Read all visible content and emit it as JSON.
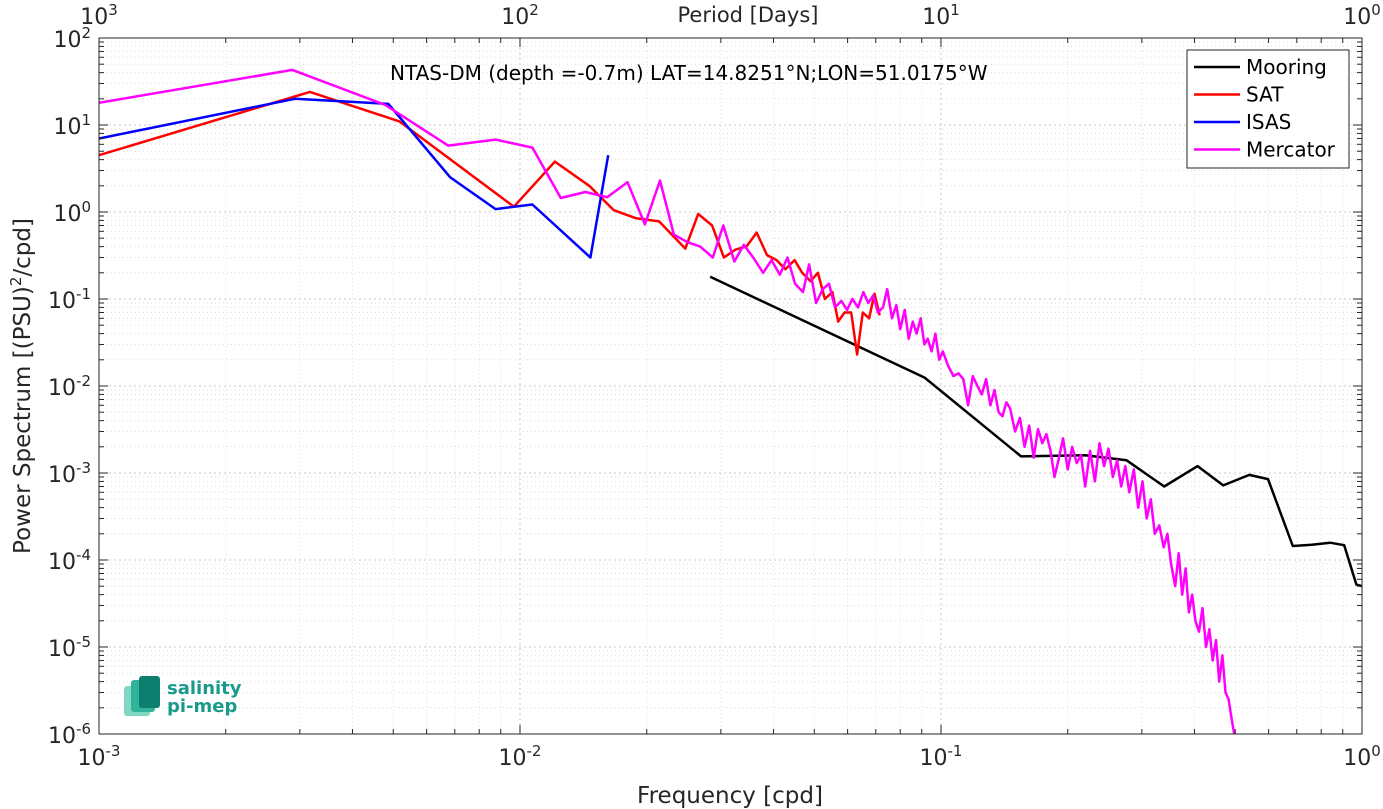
{
  "chart_data": {
    "type": "line",
    "title": "NTAS-DM (depth =-0.7m) LAT=14.8251°N;LON=51.0175°W",
    "xlabel": "Frequency [cpd]",
    "ylabel_main": "Power Spectrum [(PSU)",
    "ylabel_sup": "2",
    "ylabel_end": "/cpd]",
    "top_xlabel": "Period [Days]",
    "x_scale": "log",
    "y_scale": "log",
    "xlim": [
      0.001,
      1
    ],
    "ylim": [
      1e-06,
      100
    ],
    "grid": true,
    "legend_position": "top-right",
    "x_ticks": [
      {
        "value": 0.001,
        "base": "10",
        "exp": "-3"
      },
      {
        "value": 0.01,
        "base": "10",
        "exp": "-2"
      },
      {
        "value": 0.1,
        "base": "10",
        "exp": "-1"
      },
      {
        "value": 1,
        "base": "10",
        "exp": "0"
      }
    ],
    "top_ticks": [
      {
        "value": 0.001,
        "base": "10",
        "exp": "3"
      },
      {
        "value": 0.01,
        "base": "10",
        "exp": "2"
      },
      {
        "value": 0.1,
        "base": "10",
        "exp": "1"
      },
      {
        "value": 1,
        "base": "10",
        "exp": "0"
      }
    ],
    "y_ticks": [
      {
        "value": 1e-06,
        "base": "10",
        "exp": "-6"
      },
      {
        "value": 1e-05,
        "base": "10",
        "exp": "-5"
      },
      {
        "value": 0.0001,
        "base": "10",
        "exp": "-4"
      },
      {
        "value": 0.001,
        "base": "10",
        "exp": "-3"
      },
      {
        "value": 0.01,
        "base": "10",
        "exp": "-2"
      },
      {
        "value": 0.1,
        "base": "10",
        "exp": "-1"
      },
      {
        "value": 1,
        "base": "10",
        "exp": "0"
      },
      {
        "value": 10,
        "base": "10",
        "exp": "1"
      },
      {
        "value": 100,
        "base": "10",
        "exp": "2"
      }
    ],
    "series": [
      {
        "name": "Mooring",
        "color": "#000000",
        "x": [
          0.0283,
          0.0914,
          0.155,
          0.22,
          0.276,
          0.339,
          0.407,
          0.468,
          0.54,
          0.598,
          0.685,
          0.76,
          0.84,
          0.907,
          0.97,
          1.0
        ],
        "y": [
          0.18,
          0.0125,
          0.00155,
          0.0016,
          0.0014,
          0.0007,
          0.0012,
          0.00072,
          0.00095,
          0.00085,
          0.000145,
          0.00015,
          0.000158,
          0.000148,
          5.22e-05,
          5e-05
        ]
      },
      {
        "name": "SAT",
        "color": "#ff0000",
        "x": [
          0.001,
          0.00317,
          0.00517,
          0.00967,
          0.0121,
          0.0146,
          0.0167,
          0.0188,
          0.0214,
          0.0247,
          0.0265,
          0.0286,
          0.0305,
          0.0325,
          0.0345,
          0.0365,
          0.0386,
          0.0407,
          0.0427,
          0.0449,
          0.0468,
          0.049,
          0.051,
          0.053,
          0.0552,
          0.057,
          0.059,
          0.0612,
          0.0632,
          0.0652,
          0.0675,
          0.0695,
          0.0715
        ],
        "y": [
          4.5,
          24,
          11,
          1.15,
          3.8,
          2.0,
          1.05,
          0.85,
          0.78,
          0.38,
          0.95,
          0.7,
          0.3,
          0.37,
          0.4,
          0.58,
          0.32,
          0.28,
          0.22,
          0.28,
          0.2,
          0.16,
          0.2,
          0.1,
          0.12,
          0.055,
          0.07,
          0.07,
          0.023,
          0.07,
          0.06,
          0.115,
          0.065
        ]
      },
      {
        "name": "ISAS",
        "color": "#0000ff",
        "x": [
          0.001,
          0.00292,
          0.00487,
          0.00683,
          0.00875,
          0.0107,
          0.0147,
          0.0162
        ],
        "y": [
          7,
          20,
          17.5,
          2.5,
          1.08,
          1.22,
          0.3,
          4.5
        ]
      },
      {
        "name": "Mercator",
        "color": "#ff00ff",
        "x": [
          0.001,
          0.00288,
          0.00479,
          0.00675,
          0.00875,
          0.0107,
          0.0125,
          0.0143,
          0.0161,
          0.018,
          0.0198,
          0.0215,
          0.0232,
          0.025,
          0.0268,
          0.0287,
          0.0304,
          0.0323,
          0.034,
          0.0358,
          0.0378,
          0.0396,
          0.0414,
          0.0432,
          0.045,
          0.047,
          0.0486,
          0.0505,
          0.0524,
          0.0542,
          0.056,
          0.058,
          0.0598,
          0.0616,
          0.0635,
          0.0654,
          0.0672,
          0.069,
          0.0708,
          0.0728,
          0.0745,
          0.0765,
          0.0783,
          0.08,
          0.082,
          0.0838,
          0.0857,
          0.0875,
          0.0895,
          0.0913,
          0.093,
          0.095,
          0.097,
          0.099,
          0.101,
          0.104,
          0.107,
          0.11,
          0.113,
          0.116,
          0.119,
          0.122,
          0.125,
          0.128,
          0.131,
          0.134,
          0.137,
          0.14,
          0.143,
          0.146,
          0.15,
          0.154,
          0.158,
          0.162,
          0.166,
          0.17,
          0.174,
          0.178,
          0.182,
          0.186,
          0.19,
          0.195,
          0.2,
          0.205,
          0.21,
          0.215,
          0.22,
          0.226,
          0.232,
          0.238,
          0.244,
          0.25,
          0.256,
          0.262,
          0.268,
          0.274,
          0.28,
          0.287,
          0.294,
          0.301,
          0.308,
          0.315,
          0.322,
          0.33,
          0.338,
          0.345,
          0.352,
          0.36,
          0.367,
          0.374,
          0.381,
          0.388,
          0.395,
          0.402,
          0.41,
          0.418,
          0.426,
          0.434,
          0.442,
          0.45,
          0.458,
          0.466,
          0.474,
          0.482,
          0.49,
          0.497
        ],
        "y": [
          18,
          43,
          17,
          5.8,
          6.8,
          5.5,
          1.45,
          1.7,
          1.48,
          2.2,
          0.72,
          2.3,
          0.55,
          0.45,
          0.4,
          0.3,
          0.7,
          0.27,
          0.42,
          0.3,
          0.2,
          0.28,
          0.19,
          0.3,
          0.15,
          0.12,
          0.25,
          0.09,
          0.13,
          0.15,
          0.08,
          0.095,
          0.075,
          0.1,
          0.08,
          0.12,
          0.09,
          0.11,
          0.07,
          0.08,
          0.13,
          0.06,
          0.085,
          0.045,
          0.075,
          0.035,
          0.055,
          0.04,
          0.06,
          0.03,
          0.035,
          0.025,
          0.04,
          0.02,
          0.025,
          0.017,
          0.013,
          0.014,
          0.012,
          0.006,
          0.013,
          0.01,
          0.008,
          0.012,
          0.006,
          0.009,
          0.005,
          0.0045,
          0.0065,
          0.0055,
          0.003,
          0.0043,
          0.002,
          0.0035,
          0.0015,
          0.0032,
          0.0022,
          0.0028,
          0.0018,
          0.0009,
          0.0014,
          0.0025,
          0.0011,
          0.002,
          0.0013,
          0.0016,
          0.0007,
          0.0018,
          0.0008,
          0.0022,
          0.0012,
          0.0019,
          0.0009,
          0.0014,
          0.0007,
          0.0012,
          0.0006,
          0.0011,
          0.0004,
          0.0008,
          0.0003,
          0.0005,
          0.0002,
          0.00025,
          0.00014,
          0.0002,
          9e-05,
          5e-05,
          0.00012,
          4e-05,
          8e-05,
          2.5e-05,
          4e-05,
          2e-05,
          1.5e-05,
          2.8e-05,
          1e-05,
          1.6e-05,
          7e-06,
          1.2e-05,
          4e-06,
          8e-06,
          3e-06,
          2.5e-06,
          1.5e-06,
          1e-06
        ]
      }
    ]
  },
  "logo": {
    "line1": "salinity",
    "line2": "pi-mep",
    "colors": [
      "#0e7f6e",
      "#2fb39a",
      "#7fd8c2"
    ]
  }
}
